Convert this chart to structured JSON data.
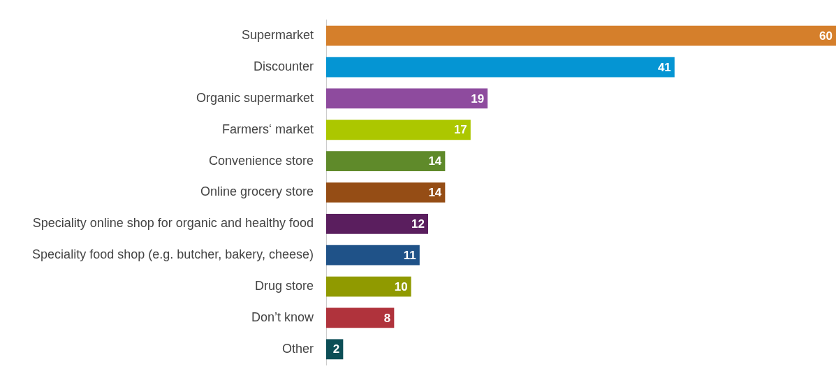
{
  "chart_data": {
    "type": "bar",
    "orientation": "horizontal",
    "data_labels": true,
    "categories": [
      "Supermarket",
      "Discounter",
      "Organic supermarket",
      "Farmers‘ market",
      "Convenience store",
      "Online grocery store",
      "Speciality online shop for organic and healthy food",
      "Speciality food shop (e.g. butcher, bakery, cheese)",
      "Drug store",
      "Don’t know",
      "Other"
    ],
    "values": [
      60,
      41,
      19,
      17,
      14,
      14,
      12,
      11,
      10,
      8,
      2
    ],
    "colors": [
      "#d57f2b",
      "#0595d3",
      "#8e4b9e",
      "#acc700",
      "#5f8a2a",
      "#954d15",
      "#5a1e5e",
      "#1f5288",
      "#909a00",
      "#b0333c",
      "#0c4e56"
    ]
  }
}
